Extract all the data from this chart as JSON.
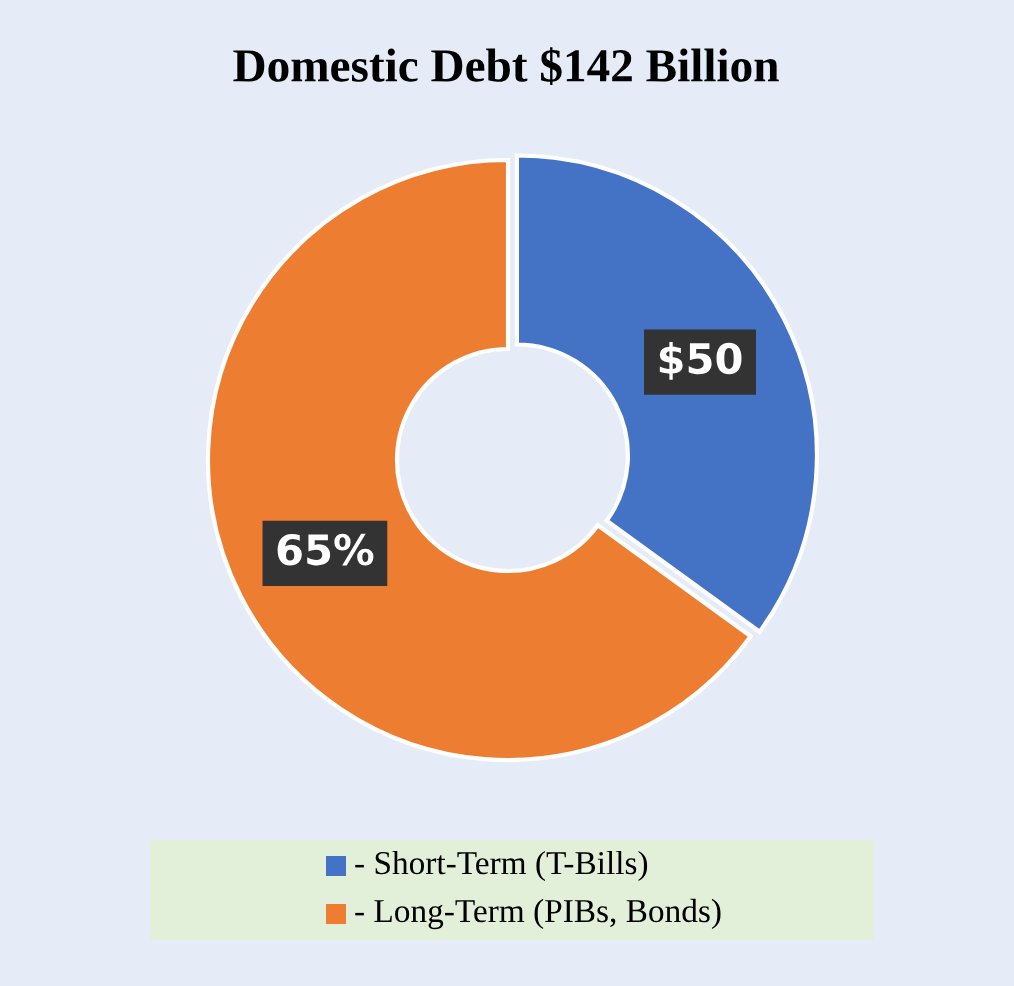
{
  "chart_data": {
    "type": "donut",
    "title": "Domestic Debt $142 Billion",
    "categories": [
      "- Short-Term (T-Bills)",
      "- Long-Term (PIBs, Bonds)"
    ],
    "values": [
      35,
      65
    ],
    "annotations": [
      "$50",
      "65%"
    ],
    "colors": [
      "#4472c4",
      "#ed7d31"
    ],
    "legend": "bottom"
  }
}
